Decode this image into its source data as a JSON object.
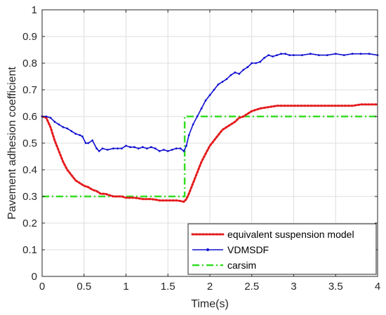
{
  "chart_data": {
    "type": "line",
    "title": "",
    "xlabel": "Time(s)",
    "ylabel": "Pavement adhesion coefficient",
    "xlim": [
      0,
      4
    ],
    "ylim": [
      0,
      1
    ],
    "xticks": [
      0,
      0.5,
      1,
      1.5,
      2,
      2.5,
      3,
      3.5,
      4
    ],
    "xtick_labels": [
      "0",
      "0.5",
      "1",
      "1.5",
      "2",
      "2.5",
      "3",
      "3.5",
      "4"
    ],
    "yticks": [
      0,
      0.1,
      0.2,
      0.3,
      0.4,
      0.5,
      0.6,
      0.7,
      0.8,
      0.9,
      1
    ],
    "ytick_labels": [
      "0",
      "0.1",
      "0.2",
      "0.3",
      "0.4",
      "0.5",
      "0.6",
      "0.7",
      "0.8",
      "0.9",
      "1"
    ],
    "grid": true,
    "legend_position": "bottom-right",
    "series": [
      {
        "name": "equivalent suspension model",
        "color": "#e41a1c",
        "style": "dotted",
        "x": [
          0,
          0.05,
          0.1,
          0.15,
          0.2,
          0.25,
          0.3,
          0.35,
          0.4,
          0.45,
          0.5,
          0.55,
          0.6,
          0.65,
          0.7,
          0.75,
          0.8,
          0.85,
          0.9,
          0.95,
          1.0,
          1.05,
          1.1,
          1.15,
          1.2,
          1.25,
          1.3,
          1.35,
          1.4,
          1.45,
          1.5,
          1.55,
          1.6,
          1.65,
          1.69,
          1.72,
          1.75,
          1.8,
          1.85,
          1.9,
          1.95,
          2.0,
          2.05,
          2.1,
          2.15,
          2.2,
          2.25,
          2.3,
          2.35,
          2.4,
          2.45,
          2.5,
          2.6,
          2.7,
          2.8,
          2.9,
          3.0,
          3.1,
          3.2,
          3.3,
          3.4,
          3.5,
          3.6,
          3.7,
          3.8,
          3.9,
          4.0
        ],
        "y": [
          0.6,
          0.595,
          0.56,
          0.51,
          0.47,
          0.43,
          0.4,
          0.38,
          0.36,
          0.35,
          0.34,
          0.335,
          0.325,
          0.32,
          0.31,
          0.31,
          0.305,
          0.3,
          0.3,
          0.3,
          0.295,
          0.295,
          0.295,
          0.293,
          0.29,
          0.29,
          0.29,
          0.288,
          0.285,
          0.285,
          0.285,
          0.285,
          0.285,
          0.283,
          0.28,
          0.29,
          0.31,
          0.35,
          0.39,
          0.43,
          0.46,
          0.49,
          0.51,
          0.53,
          0.55,
          0.56,
          0.57,
          0.58,
          0.595,
          0.6,
          0.61,
          0.62,
          0.63,
          0.635,
          0.64,
          0.64,
          0.64,
          0.64,
          0.64,
          0.64,
          0.64,
          0.64,
          0.64,
          0.64,
          0.645,
          0.645,
          0.645
        ]
      },
      {
        "name": "VDMSDF",
        "color": "#1010d0",
        "style": "solid-marker",
        "x": [
          0,
          0.05,
          0.1,
          0.15,
          0.2,
          0.25,
          0.3,
          0.35,
          0.4,
          0.45,
          0.48,
          0.52,
          0.55,
          0.6,
          0.65,
          0.68,
          0.72,
          0.78,
          0.85,
          0.9,
          0.95,
          1.0,
          1.05,
          1.1,
          1.15,
          1.2,
          1.25,
          1.3,
          1.35,
          1.4,
          1.45,
          1.5,
          1.55,
          1.6,
          1.65,
          1.69,
          1.72,
          1.75,
          1.8,
          1.85,
          1.9,
          1.95,
          2.0,
          2.05,
          2.1,
          2.15,
          2.2,
          2.25,
          2.3,
          2.35,
          2.4,
          2.45,
          2.5,
          2.55,
          2.6,
          2.65,
          2.7,
          2.75,
          2.8,
          2.85,
          2.9,
          2.95,
          3.0,
          3.1,
          3.2,
          3.3,
          3.4,
          3.5,
          3.6,
          3.7,
          3.8,
          3.9,
          4.0
        ],
        "y": [
          0.6,
          0.6,
          0.595,
          0.58,
          0.57,
          0.56,
          0.555,
          0.545,
          0.535,
          0.53,
          0.525,
          0.5,
          0.5,
          0.51,
          0.48,
          0.47,
          0.48,
          0.475,
          0.48,
          0.48,
          0.48,
          0.49,
          0.485,
          0.485,
          0.48,
          0.485,
          0.48,
          0.485,
          0.48,
          0.47,
          0.475,
          0.47,
          0.475,
          0.48,
          0.48,
          0.47,
          0.49,
          0.53,
          0.57,
          0.6,
          0.63,
          0.66,
          0.68,
          0.7,
          0.72,
          0.73,
          0.74,
          0.755,
          0.765,
          0.76,
          0.775,
          0.785,
          0.8,
          0.8,
          0.805,
          0.82,
          0.83,
          0.825,
          0.83,
          0.835,
          0.835,
          0.83,
          0.83,
          0.83,
          0.835,
          0.83,
          0.83,
          0.835,
          0.83,
          0.835,
          0.835,
          0.835,
          0.83
        ]
      },
      {
        "name": "carsim",
        "color": "#33dd22",
        "style": "dash-dot",
        "x": [
          0,
          1.7,
          1.7,
          4.0
        ],
        "y": [
          0.3,
          0.3,
          0.6,
          0.6
        ]
      }
    ]
  }
}
